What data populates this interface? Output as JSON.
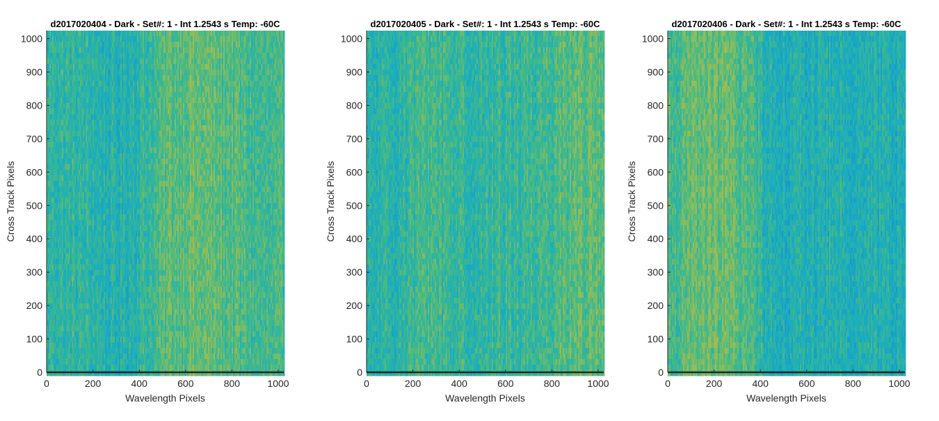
{
  "chart_data": [
    {
      "type": "heatmap",
      "title": "d2017020404 - Dark - Set#: 1 - Int 1.2543 s Temp: -60C",
      "xlabel": "Wavelength Pixels",
      "ylabel": "Cross Track Pixels",
      "xlim": [
        0,
        1024
      ],
      "ylim": [
        0,
        1024
      ],
      "xticks": [
        0,
        200,
        400,
        600,
        800,
        1000
      ],
      "yticks": [
        0,
        100,
        200,
        300,
        400,
        500,
        600,
        700,
        800,
        900,
        1000
      ],
      "grid": false,
      "colormap": "parula",
      "column_profile": {
        "x": [
          0,
          100,
          200,
          300,
          400,
          480,
          520,
          600,
          700,
          800,
          900,
          1024
        ],
        "level": [
          0.42,
          0.4,
          0.38,
          0.3,
          0.4,
          0.5,
          0.58,
          0.62,
          0.6,
          0.55,
          0.48,
          0.45
        ]
      }
    },
    {
      "type": "heatmap",
      "title": "d2017020405 - Dark - Set#: 1 - Int 1.2543 s Temp: -60C",
      "xlabel": "Wavelength Pixels",
      "ylabel": "Cross Track Pixels",
      "xlim": [
        0,
        1024
      ],
      "ylim": [
        0,
        1024
      ],
      "xticks": [
        0,
        200,
        400,
        600,
        800,
        1000
      ],
      "yticks": [
        0,
        100,
        200,
        300,
        400,
        500,
        600,
        700,
        800,
        900,
        1000
      ],
      "grid": false,
      "colormap": "parula",
      "column_profile": {
        "x": [
          0,
          100,
          200,
          300,
          400,
          500,
          600,
          700,
          800,
          900,
          1024
        ],
        "level": [
          0.32,
          0.36,
          0.46,
          0.5,
          0.42,
          0.4,
          0.44,
          0.46,
          0.52,
          0.6,
          0.58
        ]
      }
    },
    {
      "type": "heatmap",
      "title": "d2017020406 - Dark - Set#: 1 - Int 1.2543 s Temp: -60C",
      "xlabel": "Wavelength Pixels",
      "ylabel": "Cross Track Pixels",
      "xlim": [
        0,
        1024
      ],
      "ylim": [
        0,
        1024
      ],
      "xticks": [
        0,
        200,
        400,
        600,
        800,
        1000
      ],
      "yticks": [
        0,
        100,
        200,
        300,
        400,
        500,
        600,
        700,
        800,
        900,
        1000
      ],
      "grid": false,
      "colormap": "parula",
      "column_profile": {
        "x": [
          0,
          100,
          200,
          300,
          380,
          440,
          600,
          800,
          1000,
          1024
        ],
        "level": [
          0.48,
          0.6,
          0.64,
          0.58,
          0.46,
          0.32,
          0.3,
          0.32,
          0.3,
          0.3
        ]
      }
    }
  ],
  "colors": {
    "axis": "#262626",
    "text": "#262626",
    "colormap_stops": [
      "#1896c9",
      "#19acc2",
      "#3eb98b",
      "#8ebc5a",
      "#c4b93f"
    ]
  }
}
